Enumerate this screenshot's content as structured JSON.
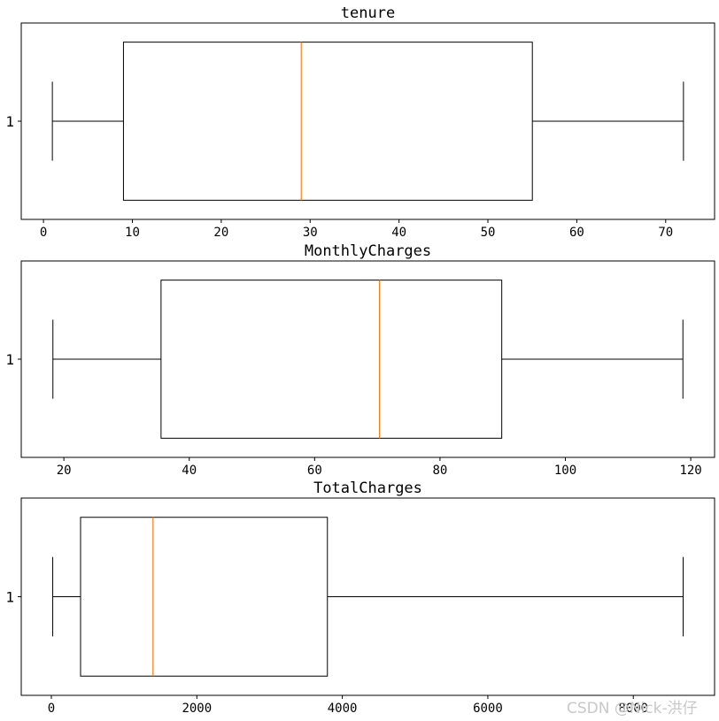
{
  "watermark": "CSDN @Nick-洪仔",
  "colors": {
    "box": "#000000",
    "median": "#ff7f0e",
    "background": "#ffffff"
  },
  "chart_data": [
    {
      "type": "box",
      "title": "tenure",
      "categories": [
        "1"
      ],
      "box": {
        "whislo": 1,
        "q1": 9,
        "med": 29,
        "q3": 55,
        "whishi": 72
      },
      "xlim": [
        -2.5,
        75.5
      ],
      "xticks": [
        0,
        10,
        20,
        30,
        40,
        50,
        60,
        70
      ],
      "xtick_labels": [
        "0",
        "10",
        "20",
        "30",
        "40",
        "50",
        "60",
        "70"
      ],
      "grid": false
    },
    {
      "type": "box",
      "title": "MonthlyCharges",
      "categories": [
        "1"
      ],
      "box": {
        "whislo": 18.25,
        "q1": 35.5,
        "med": 70.35,
        "q3": 89.85,
        "whishi": 118.75
      },
      "xlim": [
        13.2,
        123.8
      ],
      "xticks": [
        20,
        40,
        60,
        80,
        100,
        120
      ],
      "xtick_labels": [
        "20",
        "40",
        "60",
        "80",
        "100",
        "120"
      ],
      "grid": false
    },
    {
      "type": "box",
      "title": "TotalCharges",
      "categories": [
        "1"
      ],
      "box": {
        "whislo": 18.8,
        "q1": 401.4,
        "med": 1397.5,
        "q3": 3794.7,
        "whishi": 8684.8
      },
      "xlim": [
        -414,
        9117
      ],
      "xticks": [
        0,
        2000,
        4000,
        6000,
        8000
      ],
      "xtick_labels": [
        "0",
        "2000",
        "4000",
        "6000",
        "8000"
      ],
      "grid": false
    }
  ]
}
